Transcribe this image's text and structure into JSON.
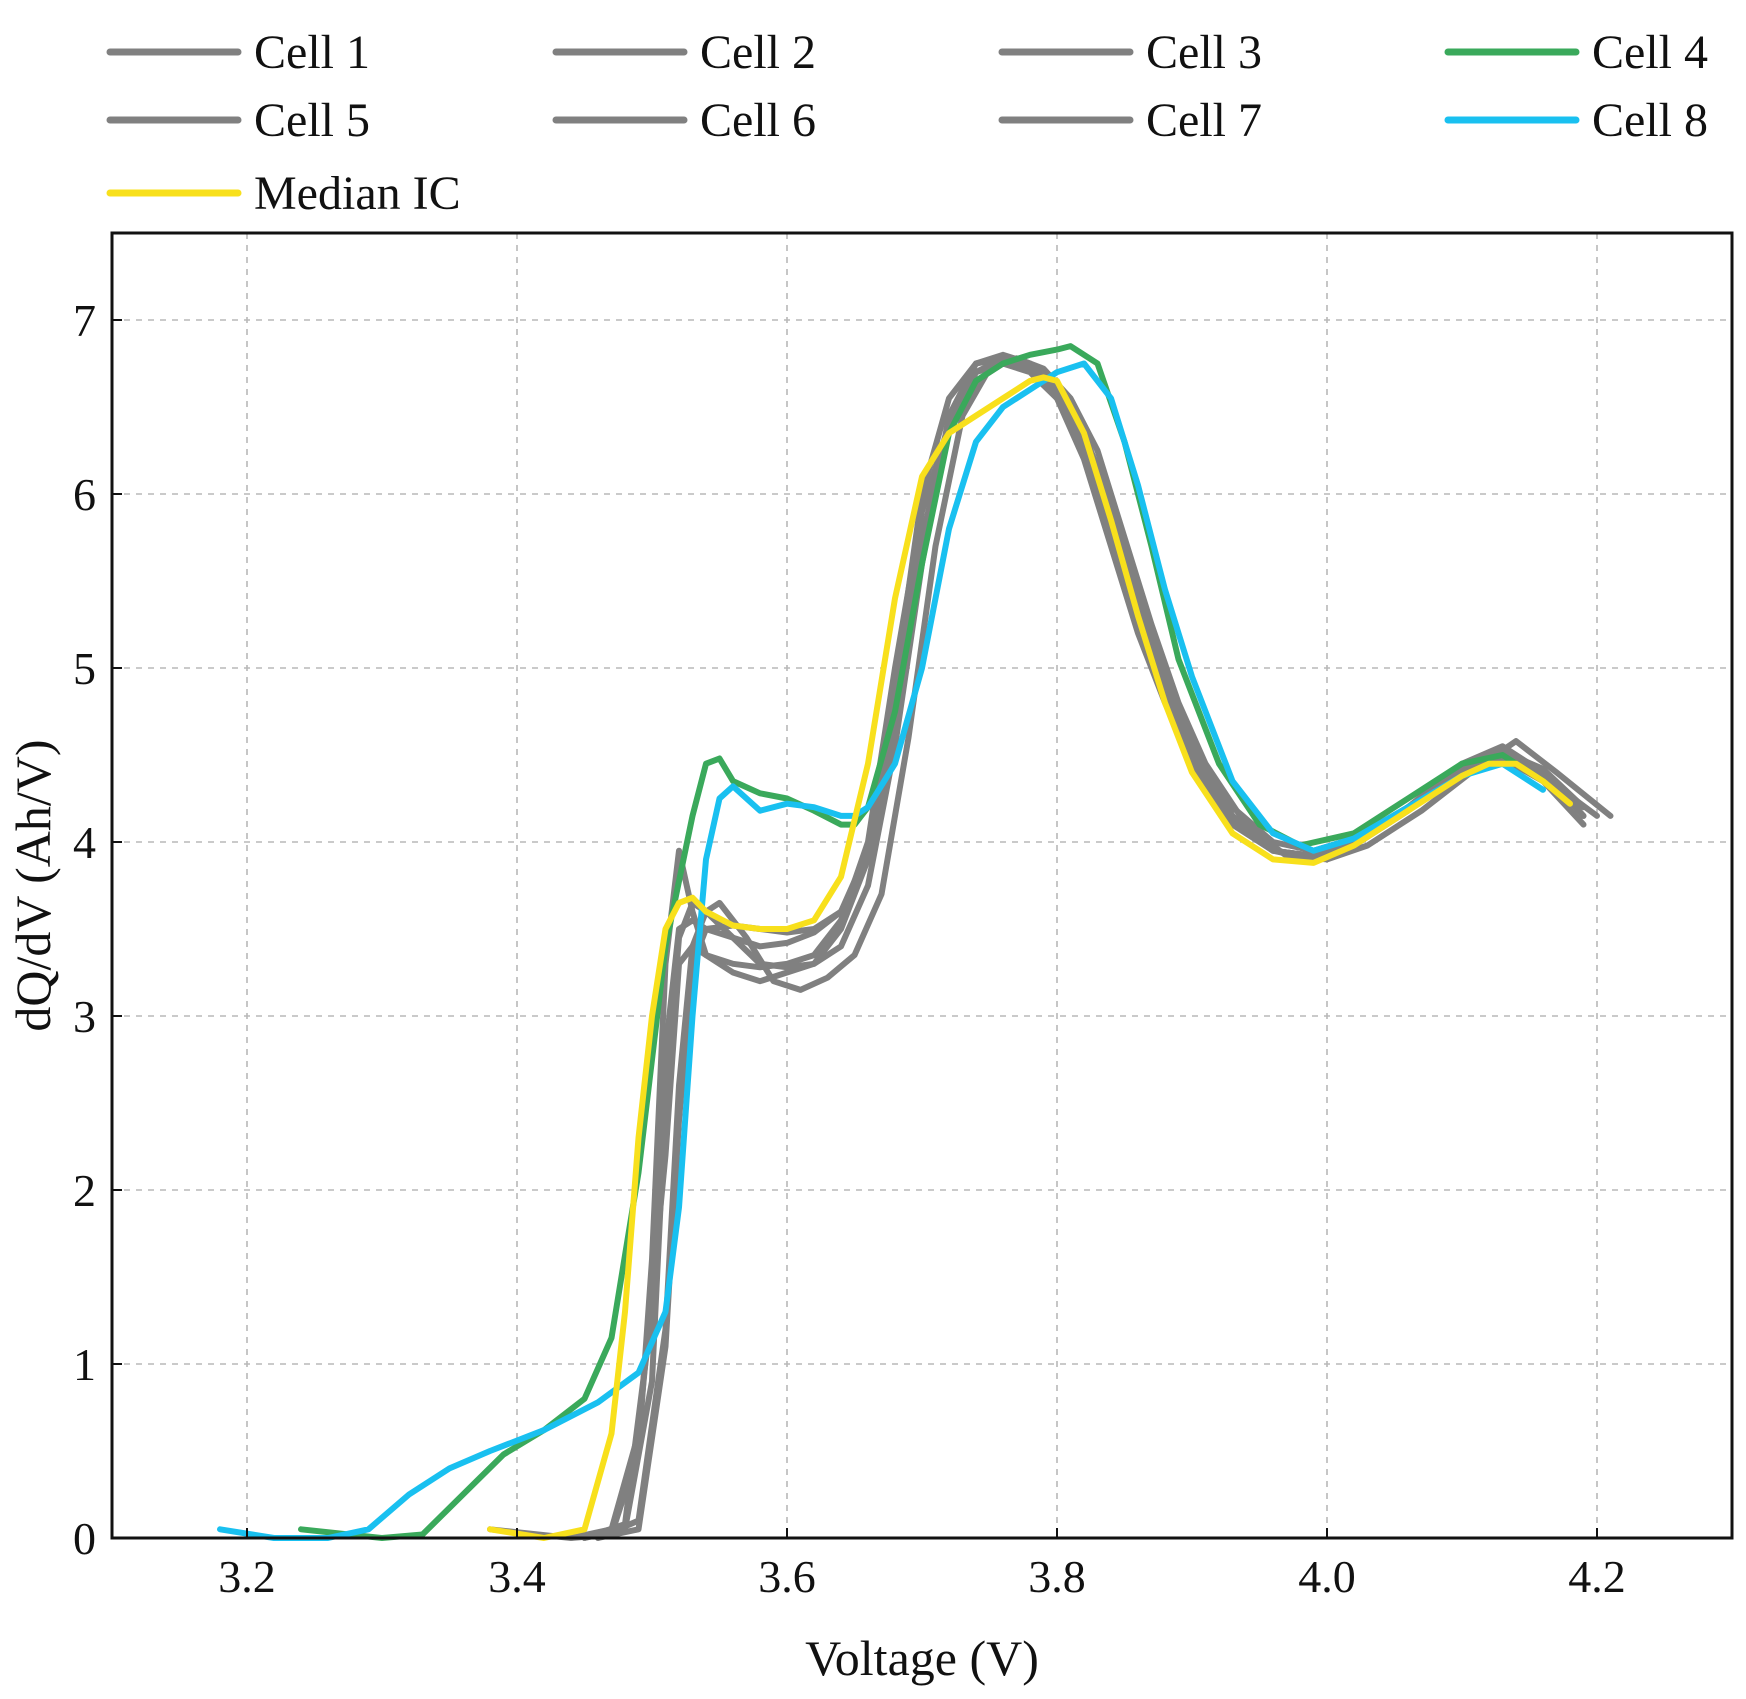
{
  "chart_data": {
    "type": "line",
    "xlabel": "Voltage (V)",
    "ylabel": "dQ/dV (Ah/V)",
    "xlim": [
      3.1,
      4.3
    ],
    "ylim": [
      0,
      7.5
    ],
    "xticks": [
      "3.2",
      "3.4",
      "3.6",
      "3.8",
      "4.0",
      "4.2"
    ],
    "yticks": [
      "0",
      "1",
      "2",
      "3",
      "4",
      "5",
      "6",
      "7"
    ],
    "grid": true,
    "legend_position": "top",
    "series": [
      {
        "name": "Cell 1",
        "color": "#808080",
        "x": [
          3.38,
          3.44,
          3.47,
          3.49,
          3.5,
          3.51,
          3.52,
          3.53,
          3.54,
          3.56,
          3.58,
          3.6,
          3.62,
          3.64,
          3.66,
          3.68,
          3.7,
          3.72,
          3.74,
          3.76,
          3.78,
          3.8,
          3.82,
          3.84,
          3.86,
          3.88,
          3.9,
          3.93,
          3.96,
          3.99,
          4.02,
          4.06,
          4.1,
          4.13,
          4.16,
          4.19
        ],
        "y": [
          0.05,
          0.0,
          0.02,
          0.5,
          1.6,
          3.3,
          3.95,
          3.6,
          3.35,
          3.25,
          3.2,
          3.25,
          3.3,
          3.5,
          3.9,
          4.9,
          6.0,
          6.55,
          6.75,
          6.78,
          6.72,
          6.55,
          6.2,
          5.7,
          5.2,
          4.8,
          4.45,
          4.1,
          3.95,
          3.92,
          4.0,
          4.2,
          4.45,
          4.55,
          4.4,
          4.15
        ]
      },
      {
        "name": "Cell 2",
        "color": "#808080",
        "x": [
          3.44,
          3.47,
          3.49,
          3.51,
          3.52,
          3.53,
          3.54,
          3.56,
          3.58,
          3.6,
          3.62,
          3.64,
          3.66,
          3.68,
          3.7,
          3.72,
          3.74,
          3.76,
          3.78,
          3.8,
          3.82,
          3.84,
          3.86,
          3.88,
          3.9,
          3.93,
          3.96,
          3.99,
          4.02,
          4.06,
          4.1,
          4.13,
          4.16,
          4.2
        ],
        "y": [
          0.0,
          0.05,
          0.6,
          2.2,
          3.3,
          3.4,
          3.35,
          3.3,
          3.28,
          3.3,
          3.35,
          3.55,
          4.0,
          5.0,
          5.9,
          6.4,
          6.65,
          6.75,
          6.72,
          6.6,
          6.3,
          5.85,
          5.35,
          4.9,
          4.55,
          4.2,
          4.0,
          3.95,
          4.02,
          4.2,
          4.42,
          4.5,
          4.38,
          4.15
        ]
      },
      {
        "name": "Cell 3",
        "color": "#808080",
        "x": [
          3.45,
          3.48,
          3.5,
          3.51,
          3.52,
          3.53,
          3.54,
          3.56,
          3.58,
          3.6,
          3.62,
          3.64,
          3.66,
          3.68,
          3.7,
          3.72,
          3.74,
          3.76,
          3.78,
          3.8,
          3.82,
          3.84,
          3.86,
          3.88,
          3.9,
          3.93,
          3.96,
          3.99,
          4.02,
          4.06,
          4.1,
          4.13,
          4.16,
          4.19
        ],
        "y": [
          0.0,
          0.05,
          0.9,
          2.5,
          3.45,
          3.65,
          3.6,
          3.45,
          3.3,
          3.28,
          3.3,
          3.4,
          3.75,
          4.55,
          5.6,
          6.45,
          6.75,
          6.8,
          6.75,
          6.6,
          6.35,
          5.95,
          5.45,
          4.95,
          4.55,
          4.15,
          3.95,
          3.9,
          3.98,
          4.18,
          4.4,
          4.52,
          4.42,
          4.2
        ]
      },
      {
        "name": "Cell 4",
        "color": "#3aa95b",
        "x": [
          3.24,
          3.3,
          3.33,
          3.36,
          3.39,
          3.42,
          3.45,
          3.47,
          3.49,
          3.51,
          3.53,
          3.54,
          3.55,
          3.56,
          3.58,
          3.6,
          3.62,
          3.64,
          3.65,
          3.66,
          3.68,
          3.7,
          3.72,
          3.74,
          3.76,
          3.78,
          3.8,
          3.81,
          3.83,
          3.85,
          3.87,
          3.89,
          3.92,
          3.95,
          3.98,
          4.02,
          4.06,
          4.1,
          4.13,
          4.16
        ],
        "y": [
          0.05,
          0.0,
          0.02,
          0.25,
          0.48,
          0.62,
          0.8,
          1.15,
          2.1,
          3.4,
          4.15,
          4.45,
          4.48,
          4.35,
          4.28,
          4.25,
          4.18,
          4.1,
          4.1,
          4.2,
          4.75,
          5.6,
          6.35,
          6.65,
          6.75,
          6.8,
          6.83,
          6.85,
          6.75,
          6.3,
          5.7,
          5.05,
          4.45,
          4.1,
          3.98,
          4.05,
          4.25,
          4.45,
          4.5,
          4.35
        ]
      },
      {
        "name": "Cell 5",
        "color": "#808080",
        "x": [
          3.45,
          3.48,
          3.5,
          3.51,
          3.52,
          3.53,
          3.54,
          3.56,
          3.58,
          3.6,
          3.62,
          3.64,
          3.66,
          3.68,
          3.7,
          3.72,
          3.74,
          3.76,
          3.78,
          3.8,
          3.82,
          3.84,
          3.86,
          3.88,
          3.9,
          3.93,
          3.96,
          3.99,
          4.02,
          4.06,
          4.1,
          4.13,
          4.16,
          4.19
        ],
        "y": [
          0.0,
          0.08,
          1.3,
          2.8,
          3.5,
          3.55,
          3.5,
          3.45,
          3.4,
          3.42,
          3.48,
          3.6,
          3.95,
          4.75,
          5.75,
          6.4,
          6.7,
          6.78,
          6.74,
          6.6,
          6.3,
          5.85,
          5.35,
          4.9,
          4.5,
          4.12,
          3.95,
          3.92,
          4.0,
          4.2,
          4.4,
          4.48,
          4.35,
          4.1
        ]
      },
      {
        "name": "Cell 6",
        "color": "#808080",
        "x": [
          3.46,
          3.49,
          3.51,
          3.52,
          3.53,
          3.54,
          3.55,
          3.57,
          3.59,
          3.61,
          3.63,
          3.65,
          3.67,
          3.69,
          3.71,
          3.73,
          3.75,
          3.77,
          3.79,
          3.81,
          3.83,
          3.85,
          3.87,
          3.89,
          3.91,
          3.94,
          3.97,
          4.0,
          4.03,
          4.07,
          4.11,
          4.14,
          4.17,
          4.21
        ],
        "y": [
          0.0,
          0.1,
          1.2,
          2.6,
          3.4,
          3.6,
          3.65,
          3.45,
          3.2,
          3.15,
          3.22,
          3.35,
          3.7,
          4.6,
          5.7,
          6.45,
          6.72,
          6.78,
          6.72,
          6.55,
          6.25,
          5.75,
          5.25,
          4.8,
          4.45,
          4.1,
          3.92,
          3.9,
          3.98,
          4.18,
          4.42,
          4.58,
          4.4,
          4.15
        ]
      },
      {
        "name": "Cell 7",
        "color": "#808080",
        "x": [
          3.46,
          3.49,
          3.51,
          3.52,
          3.53,
          3.54,
          3.56,
          3.58,
          3.6,
          3.62,
          3.64,
          3.66,
          3.68,
          3.7,
          3.72,
          3.74,
          3.76,
          3.78,
          3.8,
          3.82,
          3.84,
          3.86,
          3.88,
          3.9,
          3.93,
          3.96,
          3.99,
          4.02,
          4.06,
          4.1,
          4.13,
          4.16,
          4.19
        ],
        "y": [
          0.0,
          0.05,
          1.1,
          2.4,
          3.3,
          3.5,
          3.52,
          3.5,
          3.48,
          3.5,
          3.6,
          3.9,
          4.7,
          5.7,
          6.4,
          6.7,
          6.75,
          6.7,
          6.55,
          6.25,
          5.8,
          5.3,
          4.85,
          4.5,
          4.12,
          3.95,
          3.92,
          4.0,
          4.2,
          4.42,
          4.52,
          4.4,
          4.15
        ]
      },
      {
        "name": "Cell 8",
        "color": "#19c0f0",
        "x": [
          3.18,
          3.22,
          3.26,
          3.29,
          3.32,
          3.35,
          3.38,
          3.42,
          3.46,
          3.49,
          3.51,
          3.52,
          3.53,
          3.54,
          3.55,
          3.56,
          3.58,
          3.6,
          3.62,
          3.64,
          3.65,
          3.66,
          3.68,
          3.7,
          3.72,
          3.74,
          3.76,
          3.78,
          3.8,
          3.82,
          3.84,
          3.86,
          3.88,
          3.9,
          3.93,
          3.96,
          3.99,
          4.02,
          4.06,
          4.1,
          4.13,
          4.16
        ],
        "y": [
          0.05,
          0.0,
          0.0,
          0.05,
          0.25,
          0.4,
          0.5,
          0.62,
          0.78,
          0.95,
          1.3,
          1.9,
          3.0,
          3.9,
          4.25,
          4.32,
          4.18,
          4.22,
          4.2,
          4.15,
          4.15,
          4.2,
          4.45,
          5.0,
          5.8,
          6.3,
          6.5,
          6.6,
          6.7,
          6.75,
          6.55,
          6.05,
          5.45,
          4.95,
          4.35,
          4.05,
          3.95,
          4.02,
          4.2,
          4.38,
          4.45,
          4.3
        ]
      },
      {
        "name": "Median IC",
        "color": "#f8e01c",
        "x": [
          3.38,
          3.42,
          3.45,
          3.47,
          3.48,
          3.49,
          3.5,
          3.51,
          3.52,
          3.53,
          3.54,
          3.56,
          3.58,
          3.6,
          3.62,
          3.64,
          3.66,
          3.68,
          3.7,
          3.72,
          3.74,
          3.76,
          3.78,
          3.79,
          3.8,
          3.82,
          3.84,
          3.86,
          3.88,
          3.9,
          3.93,
          3.96,
          3.99,
          4.02,
          4.06,
          4.1,
          4.12,
          4.14,
          4.16,
          4.18
        ],
        "y": [
          0.05,
          0.0,
          0.05,
          0.6,
          1.3,
          2.3,
          3.0,
          3.5,
          3.65,
          3.68,
          3.6,
          3.52,
          3.5,
          3.5,
          3.55,
          3.8,
          4.45,
          5.4,
          6.1,
          6.35,
          6.45,
          6.55,
          6.65,
          6.67,
          6.65,
          6.35,
          5.85,
          5.3,
          4.8,
          4.4,
          4.05,
          3.9,
          3.88,
          3.98,
          4.18,
          4.38,
          4.45,
          4.45,
          4.35,
          4.22
        ]
      }
    ]
  }
}
